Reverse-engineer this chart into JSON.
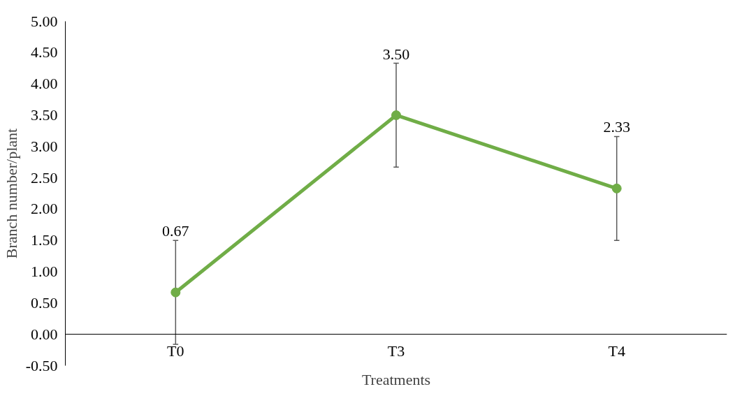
{
  "chart_data": {
    "type": "line",
    "xlabel": "Treatments",
    "ylabel": "Branch number/plant",
    "categories": [
      "T0",
      "T3",
      "T4"
    ],
    "series": [
      {
        "color": "#70ad47",
        "values": [
          0.67,
          3.5,
          2.33
        ],
        "value_labels": [
          "0.67",
          "3.50",
          "2.33"
        ],
        "errors": [
          0.83,
          0.83,
          0.83
        ]
      }
    ],
    "ylim": [
      -0.5,
      5.0
    ],
    "yticks": [
      {
        "value": -0.5,
        "label": "-0.50"
      },
      {
        "value": 0,
        "label": "0.00"
      },
      {
        "value": 0.5,
        "label": "0.50"
      },
      {
        "value": 1.0,
        "label": "1.00"
      },
      {
        "value": 1.5,
        "label": "1.50"
      },
      {
        "value": 2.0,
        "label": "2.00"
      },
      {
        "value": 2.5,
        "label": "2.50"
      },
      {
        "value": 3.0,
        "label": "3.00"
      },
      {
        "value": 3.5,
        "label": "3.50"
      },
      {
        "value": 4.0,
        "label": "4.00"
      },
      {
        "value": 4.5,
        "label": "4.50"
      },
      {
        "value": 5.0,
        "label": "5.00"
      }
    ],
    "grid": false,
    "marker": "circle",
    "line_style": "solid"
  }
}
